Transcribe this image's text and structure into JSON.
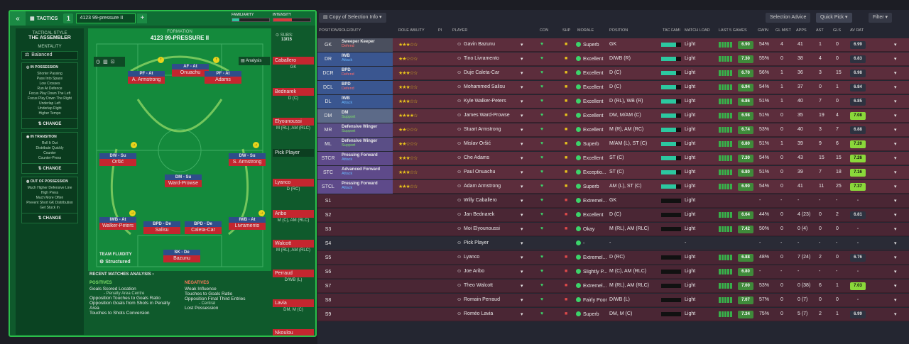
{
  "app": {
    "tab_label": "TACTICS",
    "tactic_slot": "1",
    "tactic_name": "4123 99-pressure II",
    "familiarity_label": "FAMILIARITY",
    "intensity_label": "INTENSITY"
  },
  "tactical_style": {
    "label": "TACTICAL STYLE",
    "value": "THE ASSEMBLER",
    "mentality_label": "MENTALITY",
    "mentality": "Balanced"
  },
  "in_possession": {
    "title": "IN POSSESSION",
    "items": [
      "Shorter Passing",
      "Pass Into Space",
      "Low Crosses",
      "Run At Defence",
      "Focus Play Down The Left",
      "Focus Play Down The Right",
      "Underlap Left",
      "Underlap Right",
      "Higher Tempo"
    ],
    "change": "CHANGE"
  },
  "in_transition": {
    "title": "IN TRANSITION",
    "items": [
      "Roll It Out",
      "Distribute Quickly",
      "Counter",
      "Counter-Press"
    ],
    "change": "CHANGE"
  },
  "out_of_possession": {
    "title": "OUT OF POSSESSION",
    "items": [
      "Much Higher Defensive Line",
      "High Press",
      "Much More Often",
      "Prevent Short GK Distribution",
      "Get Stuck In"
    ],
    "change": "CHANGE"
  },
  "formation": {
    "label": "FORMATION",
    "name": "4123 99-PRESSURE II",
    "analysis": "Analysis",
    "subs_label": "SUBS:",
    "subs_count": "13/15",
    "fluidity_label": "TEAM FLUIDITY",
    "fluidity": "Structured"
  },
  "pitch_players": [
    {
      "role": "PF - At",
      "name": "A. Armstrong"
    },
    {
      "role": "AF - At",
      "name": "Onuachu"
    },
    {
      "role": "PF - At",
      "name": "Adams"
    },
    {
      "role": "DW - Su",
      "name": "Oršić"
    },
    {
      "role": "DW - Su",
      "name": "S. Armstrong"
    },
    {
      "role": "DM - Su",
      "name": "Ward-Prowse"
    },
    {
      "role": "IWB - At",
      "name": "Walker-Peters"
    },
    {
      "role": "BPD - De",
      "name": "Salisu"
    },
    {
      "role": "BPD - De",
      "name": "Caleta-Car"
    },
    {
      "role": "IWB - At",
      "name": "Livramento"
    },
    {
      "role": "SK - De",
      "name": "Bazunu"
    }
  ],
  "subs": [
    {
      "name": "Caballero",
      "pos": "GK"
    },
    {
      "name": "Bednarek",
      "pos": "D (C)"
    },
    {
      "name": "Elyounoussi",
      "pos": "M (RL), AM (RLC)"
    },
    {
      "name": "Pick Player",
      "pos": ""
    },
    {
      "name": "Lyanco",
      "pos": "D (RC)"
    },
    {
      "name": "Aribo",
      "pos": "M (C), AM (RLC)"
    },
    {
      "name": "Walcott",
      "pos": "M (RL), AM (RLC)"
    },
    {
      "name": "Perraud",
      "pos": "D/WB (L)"
    },
    {
      "name": "Lavia",
      "pos": "DM, M (C)"
    },
    {
      "name": "Nkoulou",
      "pos": ""
    }
  ],
  "recent": {
    "title": "RECENT MATCHES ANALYSIS",
    "positives_label": "POSITIVES",
    "negatives_label": "NEGATIVES",
    "positives": [
      "Goals Scored Location",
      "- Penalty Area Centre",
      "Opposition Touches to Goals Ratio",
      "Opposition Goals from Shots in Penalty Area",
      "Touches to Shots Conversion"
    ],
    "negatives": [
      "Weak Influence",
      "Touches to Goals Ratio",
      "Opposition Final Third Entries",
      "- Central",
      "Lost Possession"
    ]
  },
  "right_toolbar": {
    "copy": "Copy of Selection Info",
    "advice": "Selection Advice",
    "quick_pick": "Quick Pick",
    "filter": "Filter"
  },
  "columns": [
    "POSITION/ROLE/DUTY",
    "ROLE ABILITY",
    "PI",
    "PLAYER",
    "CON",
    "SHP",
    "MORALE",
    "POSITION",
    "TAC FAMI",
    "MATCH LOAD",
    "LAST 5 GAMES",
    "GWIN",
    "GL MIST",
    "APPS",
    "AST",
    "GLS",
    "AV RAT"
  ],
  "rows": [
    {
      "pos": "GK",
      "role": "Sweeper Keeper",
      "duty": "Defend",
      "stars": "★★★☆☆",
      "player": "Gavin Bazunu",
      "morale": "Superb",
      "position": "GK",
      "load": "Light",
      "form": "6.90",
      "gwin": "54%",
      "glmist": "4",
      "apps": "41",
      "ast": "1",
      "gls": "0",
      "av": "6.99"
    },
    {
      "pos": "DR",
      "role": "IWB",
      "duty": "Attack",
      "stars": "★★☆☆☆",
      "player": "Tino Livramento",
      "morale": "Excellent",
      "position": "D/WB (R)",
      "load": "Light",
      "form": "7.30",
      "gwin": "55%",
      "glmist": "0",
      "apps": "38",
      "ast": "4",
      "gls": "0",
      "av": "6.83"
    },
    {
      "pos": "DCR",
      "role": "BPD",
      "duty": "Defend",
      "stars": "★★★☆☆",
      "player": "Duje Caleta-Car",
      "morale": "Excellent",
      "position": "D (C)",
      "load": "Light",
      "form": "6.70",
      "gwin": "56%",
      "glmist": "1",
      "apps": "36",
      "ast": "3",
      "gls": "15",
      "av": "6.98"
    },
    {
      "pos": "DCL",
      "role": "BPD",
      "duty": "Defend",
      "stars": "★★★☆☆",
      "player": "Mohammed Salisu",
      "morale": "Excellent",
      "position": "D (C)",
      "load": "Light",
      "form": "6.94",
      "gwin": "54%",
      "glmist": "1",
      "apps": "37",
      "ast": "0",
      "gls": "1",
      "av": "6.84"
    },
    {
      "pos": "DL",
      "role": "IWB",
      "duty": "Attack",
      "stars": "★★★☆☆",
      "player": "Kyle Walker-Peters",
      "morale": "Excellent",
      "position": "D (RL), WB (R)",
      "load": "Light",
      "form": "6.86",
      "gwin": "51%",
      "glmist": "1",
      "apps": "40",
      "ast": "7",
      "gls": "0",
      "av": "6.85"
    },
    {
      "pos": "DM",
      "role": "DM",
      "duty": "Support",
      "stars": "★★★★☆",
      "player": "James Ward-Prowse",
      "morale": "Excellent",
      "position": "DM, M/AM (C)",
      "load": "Light",
      "form": "6.98",
      "gwin": "51%",
      "glmist": "0",
      "apps": "35",
      "ast": "19",
      "gls": "4",
      "av": "7.08"
    },
    {
      "pos": "MR",
      "role": "Defensive Winger",
      "duty": "Support",
      "stars": "★★☆☆☆",
      "player": "Stuart Armstrong",
      "morale": "Excellent",
      "position": "M (R), AM (RC)",
      "load": "Light",
      "form": "6.74",
      "gwin": "53%",
      "glmist": "0",
      "apps": "40",
      "ast": "3",
      "gls": "7",
      "av": "6.88"
    },
    {
      "pos": "ML",
      "role": "Defensive Winger",
      "duty": "Support",
      "stars": "★★☆☆☆",
      "player": "Mislav Oršić",
      "morale": "Superb",
      "position": "M/AM (L), ST (C)",
      "load": "Light",
      "form": "6.80",
      "gwin": "51%",
      "glmist": "1",
      "apps": "39",
      "ast": "9",
      "gls": "6",
      "av": "7.20"
    },
    {
      "pos": "STCR",
      "role": "Pressing Forward",
      "duty": "Attack",
      "stars": "★★★☆☆",
      "player": "Che Adams",
      "morale": "Excellent",
      "position": "ST (C)",
      "load": "Light",
      "form": "7.30",
      "gwin": "54%",
      "glmist": "0",
      "apps": "43",
      "ast": "15",
      "gls": "15",
      "av": "7.26"
    },
    {
      "pos": "STC",
      "role": "Advanced Forward",
      "duty": "Attack",
      "stars": "★★★☆☆",
      "player": "Paul Onuachu",
      "morale": "Exceptio...",
      "position": "ST (C)",
      "load": "Light",
      "form": "6.80",
      "gwin": "51%",
      "glmist": "0",
      "apps": "39",
      "ast": "7",
      "gls": "18",
      "av": "7.16"
    },
    {
      "pos": "STCL",
      "role": "Pressing Forward",
      "duty": "Attack",
      "stars": "★★★☆☆",
      "player": "Adam Armstrong",
      "morale": "Superb",
      "position": "AM (L), ST (C)",
      "load": "Light",
      "form": "6.90",
      "gwin": "54%",
      "glmist": "0",
      "apps": "41",
      "ast": "11",
      "gls": "25",
      "av": "7.37"
    },
    {
      "pos": "S1",
      "role": "",
      "duty": "",
      "stars": "",
      "player": "Willy Caballero",
      "morale": "Extremel...",
      "position": "GK",
      "load": "Light",
      "form": "",
      "gwin": "-",
      "glmist": "-",
      "apps": "-",
      "ast": "-",
      "gls": "-",
      "av": "-"
    },
    {
      "pos": "S2",
      "role": "",
      "duty": "",
      "stars": "",
      "player": "Jan Bednarek",
      "morale": "Excellent",
      "position": "D (C)",
      "load": "Light",
      "form": "6.64",
      "gwin": "44%",
      "glmist": "0",
      "apps": "4 (23)",
      "ast": "0",
      "gls": "2",
      "av": "6.81"
    },
    {
      "pos": "S3",
      "role": "",
      "duty": "",
      "stars": "",
      "player": "Moi Elyounoussi",
      "morale": "Okay",
      "position": "M (RL), AM (RLC)",
      "load": "Light",
      "form": "7.42",
      "gwin": "50%",
      "glmist": "0",
      "apps": "0 (4)",
      "ast": "0",
      "gls": "0",
      "av": "-"
    },
    {
      "pos": "S4",
      "role": "",
      "duty": "",
      "stars": "",
      "player": "Pick Player",
      "morale": "-",
      "position": "-",
      "load": "-",
      "form": "",
      "gwin": "-",
      "glmist": "-",
      "apps": "-",
      "ast": "-",
      "gls": "-",
      "av": "-"
    },
    {
      "pos": "S5",
      "role": "",
      "duty": "",
      "stars": "",
      "player": "Lyanco",
      "morale": "Extremel...",
      "position": "D (RC)",
      "load": "Light",
      "form": "6.88",
      "gwin": "48%",
      "glmist": "0",
      "apps": "7 (24)",
      "ast": "2",
      "gls": "0",
      "av": "6.76"
    },
    {
      "pos": "S6",
      "role": "",
      "duty": "",
      "stars": "",
      "player": "Joe Aribo",
      "morale": "Slightly P...",
      "position": "M (C), AM (RLC)",
      "load": "Light",
      "form": "6.80",
      "gwin": "-",
      "glmist": "-",
      "apps": "-",
      "ast": "-",
      "gls": "-",
      "av": "-"
    },
    {
      "pos": "S7",
      "role": "",
      "duty": "",
      "stars": "",
      "player": "Theo Walcott",
      "morale": "Extremel...",
      "position": "M (RL), AM (RLC)",
      "load": "Light",
      "form": "7.00",
      "gwin": "53%",
      "glmist": "0",
      "apps": "0 (38)",
      "ast": "6",
      "gls": "1",
      "av": "7.03"
    },
    {
      "pos": "S8",
      "role": "",
      "duty": "",
      "stars": "",
      "player": "Romain Perraud",
      "morale": "Fairly Poor",
      "position": "D/WB (L)",
      "load": "Light",
      "form": "7.07",
      "gwin": "57%",
      "glmist": "0",
      "apps": "0 (7)",
      "ast": "0",
      "gls": "0",
      "av": "-"
    },
    {
      "pos": "S9",
      "role": "",
      "duty": "",
      "stars": "",
      "player": "Roméo Lavia",
      "morale": "Superb",
      "position": "DM, M (C)",
      "load": "Light",
      "form": "7.34",
      "gwin": "75%",
      "glmist": "0",
      "apps": "5 (7)",
      "ast": "2",
      "gls": "1",
      "av": "6.99"
    }
  ]
}
